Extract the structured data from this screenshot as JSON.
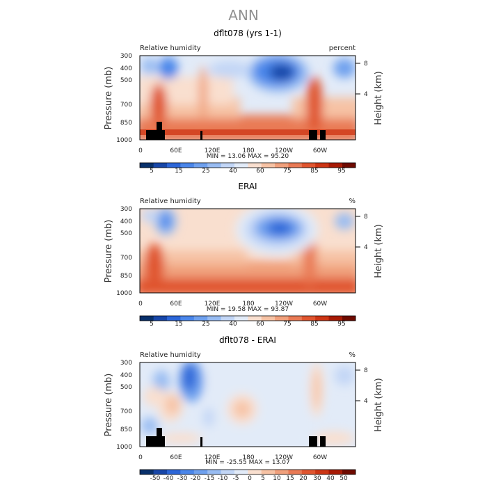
{
  "page_title": "ANN",
  "left_axis_label": "Pressure (mb)",
  "right_axis_label": "Height (km)",
  "panels": [
    {
      "title": "dflt078 (yrs 1-1)",
      "var_label": "Relative humidity",
      "units": "percent",
      "stats": "MIN =   13.06   MAX =   95.20"
    },
    {
      "title": "ERAI",
      "var_label": "Relative humidity",
      "units": "%",
      "stats": "MIN =   19.58   MAX =   93.87"
    },
    {
      "title": "dflt078 - ERAI",
      "var_label": "Relative humidity",
      "units": "%",
      "stats": "MIN =  -25.55   MAX =   13.07"
    }
  ],
  "chart_data": [
    {
      "type": "heatmap",
      "title": "dflt078 (yrs 1-1)",
      "xlabel": "",
      "ylabel": "Pressure (mb)",
      "y2label": "Height (km)",
      "x_ticks": [
        "0",
        "60E",
        "120E",
        "180",
        "120W",
        "60W"
      ],
      "y_ticks": [
        "300",
        "400",
        "500",
        "700",
        "850",
        "1000"
      ],
      "y2_ticks": [
        "8",
        "4"
      ],
      "xlim": [
        0,
        360
      ],
      "ylim": [
        1000,
        300
      ],
      "colorbar_labels": [
        "5",
        "15",
        "25",
        "40",
        "60",
        "75",
        "85",
        "95"
      ],
      "min": 13.06,
      "max": 95.2
    },
    {
      "type": "heatmap",
      "title": "ERAI",
      "xlabel": "",
      "ylabel": "Pressure (mb)",
      "y2label": "Height (km)",
      "x_ticks": [
        "0",
        "60E",
        "120E",
        "180",
        "120W",
        "60W"
      ],
      "y_ticks": [
        "300",
        "400",
        "500",
        "700",
        "850",
        "1000"
      ],
      "y2_ticks": [
        "8",
        "4"
      ],
      "xlim": [
        0,
        360
      ],
      "ylim": [
        1000,
        300
      ],
      "colorbar_labels": [
        "5",
        "15",
        "25",
        "40",
        "60",
        "75",
        "85",
        "95"
      ],
      "min": 19.58,
      "max": 93.87
    },
    {
      "type": "heatmap",
      "title": "dflt078 - ERAI",
      "xlabel": "",
      "ylabel": "Pressure (mb)",
      "y2label": "Height (km)",
      "x_ticks": [
        "0",
        "60E",
        "120E",
        "180",
        "120W",
        "60W"
      ],
      "y_ticks": [
        "300",
        "400",
        "500",
        "700",
        "850",
        "1000"
      ],
      "y2_ticks": [
        "8",
        "4"
      ],
      "xlim": [
        0,
        360
      ],
      "ylim": [
        1000,
        300
      ],
      "colorbar_labels": [
        "-50",
        "-40",
        "-30",
        "-20",
        "-15",
        "-10",
        "-5",
        "0",
        "5",
        "10",
        "15",
        "20",
        "30",
        "40",
        "50"
      ],
      "min": -25.55,
      "max": 13.07
    }
  ],
  "colors": {
    "rh_scale": [
      "#08306b",
      "#1746a8",
      "#2c66d8",
      "#4a86ea",
      "#6ea0ee",
      "#98bcf2",
      "#c2d6f6",
      "#e2ebf8",
      "#f9dfcf",
      "#f6c2a4",
      "#f0a07c",
      "#e97a55",
      "#e0552f",
      "#cc3514",
      "#a71a05",
      "#6e0a00"
    ],
    "diff_scale": [
      "#08306b",
      "#1746a8",
      "#2c66d8",
      "#4a86ea",
      "#6ea0ee",
      "#98bcf2",
      "#c2d6f6",
      "#e2ebf8",
      "#f9dfcf",
      "#f6c2a4",
      "#f0a07c",
      "#e97a55",
      "#e0552f",
      "#cc3514",
      "#a71a05",
      "#6e0a00"
    ]
  }
}
